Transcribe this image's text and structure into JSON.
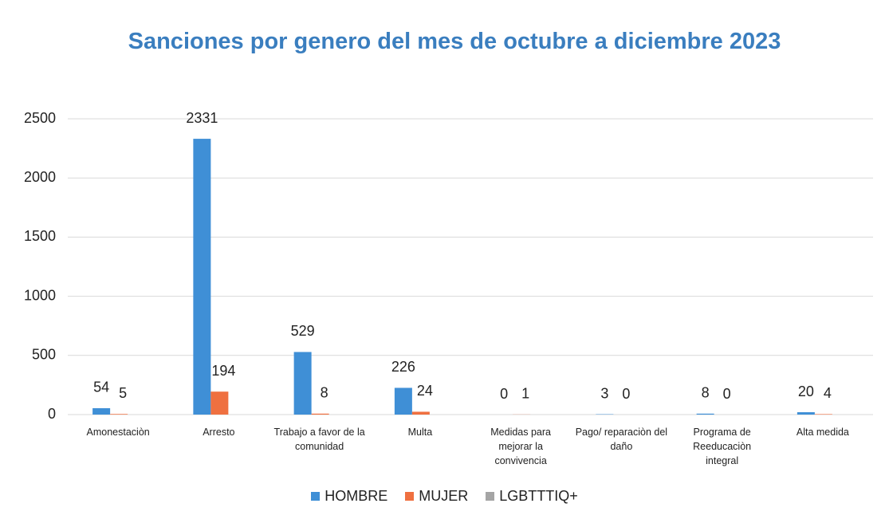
{
  "chart_data": {
    "type": "bar",
    "title": "Sanciones por genero del mes de octubre a diciembre 2023",
    "categories": [
      "Amonestaciòn",
      "Arresto",
      "Trabajo a favor de la comunidad",
      "Multa",
      "Medidas para mejorar la convivencia",
      "Pago/ reparaciòn del daño",
      "Programa de Reeducaciòn integral",
      "Alta medida"
    ],
    "series": [
      {
        "name": "HOMBRE",
        "color": "#3f8fd6",
        "values": [
          54,
          2331,
          529,
          226,
          0,
          3,
          8,
          20
        ]
      },
      {
        "name": "MUJER",
        "color": "#ef7040",
        "values": [
          5,
          194,
          8,
          24,
          1,
          0,
          0,
          4
        ]
      },
      {
        "name": "LGBTTTIQ+",
        "color": "#a5a5a5",
        "values": [
          0,
          0,
          0,
          0,
          0,
          0,
          0,
          0
        ]
      }
    ],
    "ylim": [
      0,
      2500
    ],
    "yticks": [
      0,
      500,
      1000,
      1500,
      2000,
      2500
    ],
    "grid": true,
    "legend": "bottom"
  }
}
